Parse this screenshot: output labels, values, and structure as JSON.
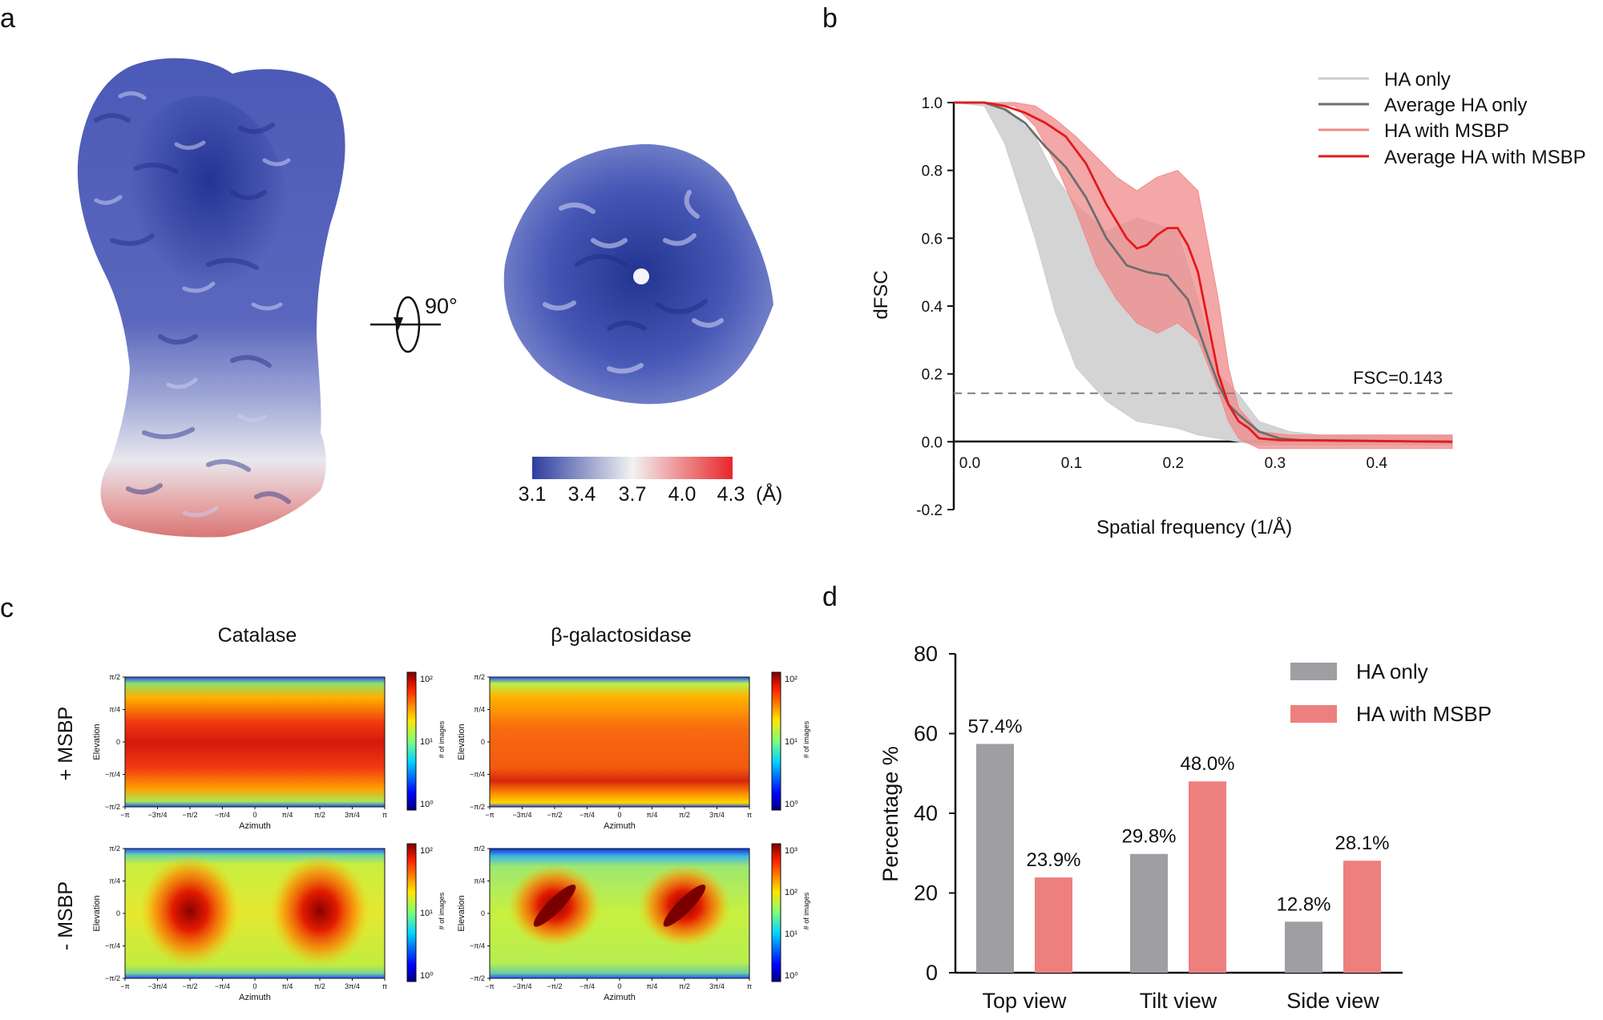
{
  "panels": {
    "a": "a",
    "b": "b",
    "c": "c",
    "d": "d"
  },
  "panel_a": {
    "rotation_label": "90°",
    "colorbar_ticks": [
      "3.1",
      "3.4",
      "3.7",
      "4.0",
      "4.3"
    ],
    "colorbar_unit": "(Å)",
    "colors": {
      "low": "#2b3d9e",
      "mid": "#f2f2f2",
      "high": "#e8262a"
    }
  },
  "chart_data": [
    {
      "id": "b",
      "type": "line",
      "xlabel": "Spatial frequency (1/Å)",
      "ylabel": "dFSC",
      "xlim": [
        0.0,
        0.49
      ],
      "ylim": [
        -0.2,
        1.0
      ],
      "xticks": [
        "0.0",
        "0.1",
        "0.2",
        "0.3",
        "0.4"
      ],
      "yticks": [
        "-0.2",
        "0.0",
        "0.2",
        "0.4",
        "0.6",
        "0.8",
        "1.0"
      ],
      "threshold": {
        "value": 0.143,
        "label": "FSC=0.143"
      },
      "series": [
        {
          "name": "HA only",
          "color": "#cccccc",
          "band": {
            "x": [
              0.0,
              0.03,
              0.05,
              0.08,
              0.1,
              0.12,
              0.15,
              0.18,
              0.2,
              0.22,
              0.24,
              0.26,
              0.28,
              0.3,
              0.33,
              0.36,
              0.49
            ],
            "upper": [
              1.0,
              1.0,
              0.99,
              0.9,
              0.78,
              0.7,
              0.62,
              0.66,
              0.64,
              0.62,
              0.42,
              0.2,
              0.14,
              0.06,
              0.03,
              0.02,
              0.02
            ],
            "lower": [
              1.0,
              0.99,
              0.88,
              0.6,
              0.38,
              0.22,
              0.12,
              0.06,
              0.05,
              0.04,
              0.02,
              0.01,
              0.0,
              -0.01,
              -0.01,
              -0.01,
              -0.01
            ]
          }
        },
        {
          "name": "Average HA only",
          "color": "#6e6e6e",
          "x": [
            0.0,
            0.03,
            0.05,
            0.07,
            0.09,
            0.11,
            0.13,
            0.15,
            0.17,
            0.19,
            0.21,
            0.23,
            0.25,
            0.26,
            0.27,
            0.28,
            0.3,
            0.32,
            0.34,
            0.49
          ],
          "y": [
            1.0,
            1.0,
            0.98,
            0.94,
            0.87,
            0.81,
            0.72,
            0.6,
            0.52,
            0.5,
            0.49,
            0.42,
            0.25,
            0.17,
            0.11,
            0.08,
            0.03,
            0.01,
            0.005,
            0.0
          ]
        },
        {
          "name": "HA with MSBP",
          "color": "#f08a8a",
          "band": {
            "x": [
              0.0,
              0.03,
              0.06,
              0.08,
              0.1,
              0.12,
              0.14,
              0.16,
              0.18,
              0.2,
              0.22,
              0.24,
              0.26,
              0.27,
              0.28,
              0.3,
              0.33,
              0.49
            ],
            "upper": [
              1.0,
              1.0,
              1.0,
              0.99,
              0.95,
              0.9,
              0.84,
              0.78,
              0.74,
              0.78,
              0.8,
              0.74,
              0.42,
              0.22,
              0.1,
              0.03,
              0.02,
              0.02
            ],
            "lower": [
              1.0,
              1.0,
              0.99,
              0.93,
              0.82,
              0.68,
              0.52,
              0.42,
              0.35,
              0.32,
              0.35,
              0.3,
              0.15,
              0.06,
              0.01,
              -0.02,
              -0.02,
              -0.02
            ]
          }
        },
        {
          "name": "Average HA with MSBP",
          "color": "#e31a1c",
          "x": [
            0.0,
            0.03,
            0.05,
            0.07,
            0.09,
            0.11,
            0.13,
            0.15,
            0.17,
            0.18,
            0.19,
            0.2,
            0.21,
            0.22,
            0.23,
            0.24,
            0.25,
            0.26,
            0.27,
            0.28,
            0.29,
            0.3,
            0.32,
            0.49
          ],
          "y": [
            1.0,
            1.0,
            0.99,
            0.97,
            0.94,
            0.9,
            0.82,
            0.7,
            0.6,
            0.57,
            0.58,
            0.61,
            0.63,
            0.63,
            0.58,
            0.5,
            0.35,
            0.2,
            0.11,
            0.06,
            0.04,
            0.01,
            0.005,
            0.0
          ]
        }
      ]
    },
    {
      "id": "c",
      "type": "heatmap",
      "columns": [
        "Catalase",
        "β-galactosidase"
      ],
      "rows": [
        "+ MSBP",
        "- MSBP"
      ],
      "xlabel": "Azimuth",
      "ylabel": "Elevation",
      "colorbar_label": "# of images",
      "x_ticks": [
        "−π",
        "−3π/4",
        "−π/2",
        "−π/4",
        "0",
        "π/4",
        "π/2",
        "3π/4",
        "π"
      ],
      "y_ticks": [
        "π/2",
        "π/4",
        "0",
        "−π/4",
        "−π/2"
      ],
      "panels": [
        {
          "sample": "Catalase",
          "condition": "+ MSBP",
          "cbar_ticks": [
            "10²",
            "10¹",
            "10⁰"
          ]
        },
        {
          "sample": "β-galactosidase",
          "condition": "+ MSBP",
          "cbar_ticks": [
            "10²",
            "10¹",
            "10⁰"
          ]
        },
        {
          "sample": "Catalase",
          "condition": "- MSBP",
          "cbar_ticks": [
            "10²",
            "10¹",
            "10⁰"
          ]
        },
        {
          "sample": "β-galactosidase",
          "condition": "- MSBP",
          "cbar_ticks": [
            "10³",
            "10²",
            "10¹",
            "10⁰"
          ]
        }
      ]
    },
    {
      "id": "d",
      "type": "bar",
      "ylabel": "Percentage %",
      "ylim": [
        0,
        80
      ],
      "yticks": [
        "0",
        "20",
        "40",
        "60",
        "80"
      ],
      "categories": [
        "Top view",
        "Tilt view",
        "Side view"
      ],
      "series": [
        {
          "name": "HA only",
          "color": "#9e9ea3",
          "values": [
            57.4,
            29.8,
            12.8
          ],
          "labels": [
            "57.4%",
            "29.8%",
            "12.8%"
          ]
        },
        {
          "name": "HA with MSBP",
          "color": "#ee7f7f",
          "values": [
            23.9,
            48.0,
            28.1
          ],
          "labels": [
            "23.9%",
            "48.0%",
            "28.1%"
          ]
        }
      ]
    }
  ]
}
